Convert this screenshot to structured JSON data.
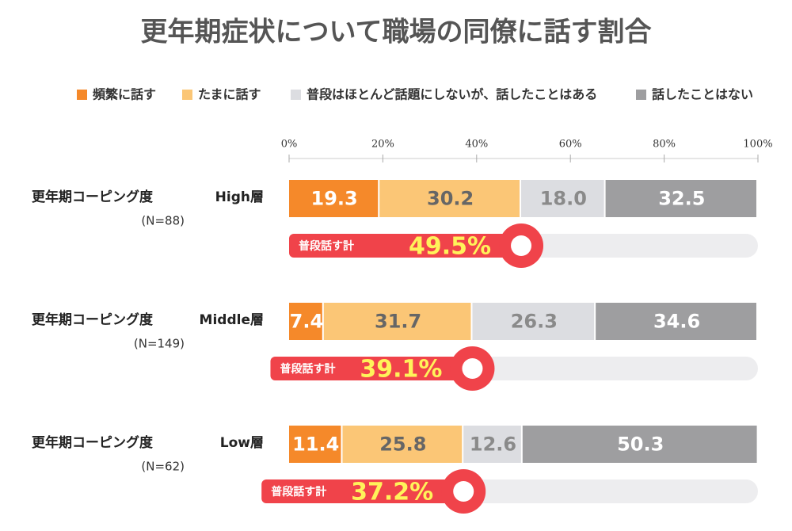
{
  "chart_data": {
    "type": "bar",
    "title": "更年期症状について職場の同僚に話す割合",
    "category_prefix": "更年期コーピング度",
    "categories": [
      "High層",
      "Middle層",
      "Low層"
    ],
    "sample_sizes": [
      "(N=88)",
      "(N=149)",
      "(N=62)"
    ],
    "series": [
      {
        "name": "頻繁に話す",
        "color": "#f5892a",
        "label_color": "#ffffff",
        "values": [
          19.3,
          7.4,
          11.4
        ]
      },
      {
        "name": "たまに話す",
        "color": "#fbc676",
        "label_color": "#666666",
        "values": [
          30.2,
          31.7,
          25.8
        ]
      },
      {
        "name": "普段はほとんど話題にしないが、話したことはある",
        "color": "#dcdde1",
        "label_color": "#8a8a8a",
        "values": [
          18.0,
          26.3,
          12.6
        ],
        "value_labels": [
          "18.0",
          "26.3",
          "12.6"
        ]
      },
      {
        "name": "話したことはない",
        "color": "#9e9ea0",
        "label_color": "#ffffff",
        "values": [
          32.5,
          34.6,
          50.3
        ]
      }
    ],
    "totals": {
      "label": "普段話す計",
      "color": "#f0434a",
      "values": [
        49.5,
        39.1,
        37.2
      ],
      "value_labels": [
        "49.5%",
        "39.1%",
        "37.2%"
      ]
    },
    "xlim": [
      0,
      100
    ],
    "xticks": [
      {
        "value": 0,
        "label": "0%"
      },
      {
        "value": 20,
        "label": "20%"
      },
      {
        "value": 40,
        "label": "40%"
      },
      {
        "value": 60,
        "label": "60%"
      },
      {
        "value": 80,
        "label": "80%"
      },
      {
        "value": 100,
        "label": "100%"
      }
    ]
  }
}
